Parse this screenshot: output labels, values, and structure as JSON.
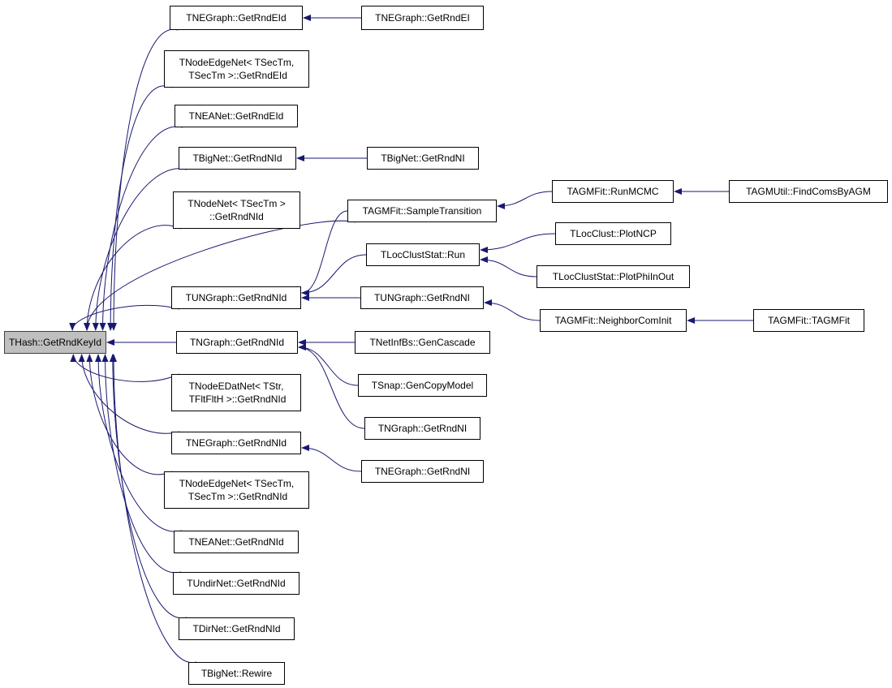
{
  "colors": {
    "edge": "#191970",
    "root_fill": "#bfbfbf",
    "node_fill": "#ffffff"
  },
  "nodes": [
    {
      "id": "root",
      "label": "THash::GetRndKeyId",
      "highlighted": true
    },
    {
      "id": "n1",
      "label": "TNEGraph::GetRndEId"
    },
    {
      "id": "n2",
      "label": "TNodeEdgeNet< TSecTm,\n TSecTm >::GetRndEId"
    },
    {
      "id": "n3",
      "label": "TNEANet::GetRndEId"
    },
    {
      "id": "n4",
      "label": "TBigNet::GetRndNId"
    },
    {
      "id": "n5",
      "label": "TNodeNet< TSecTm >\n::GetRndNId"
    },
    {
      "id": "n6",
      "label": "TUNGraph::GetRndNId"
    },
    {
      "id": "n7",
      "label": "TNGraph::GetRndNId"
    },
    {
      "id": "n8",
      "label": "TNodeEDatNet< TStr,\n TFltFltH >::GetRndNId"
    },
    {
      "id": "n9",
      "label": "TNEGraph::GetRndNId"
    },
    {
      "id": "n10",
      "label": "TNodeEdgeNet< TSecTm,\n TSecTm >::GetRndNId"
    },
    {
      "id": "n11",
      "label": "TNEANet::GetRndNId"
    },
    {
      "id": "n12",
      "label": "TUndirNet::GetRndNId"
    },
    {
      "id": "n13",
      "label": "TDirNet::GetRndNId"
    },
    {
      "id": "n14",
      "label": "TBigNet::Rewire"
    },
    {
      "id": "m1",
      "label": "TNEGraph::GetRndEI"
    },
    {
      "id": "m2",
      "label": "TBigNet::GetRndNI"
    },
    {
      "id": "m3",
      "label": "TAGMFit::SampleTransition"
    },
    {
      "id": "m4",
      "label": "TLocClustStat::Run"
    },
    {
      "id": "m5",
      "label": "TUNGraph::GetRndNI"
    },
    {
      "id": "m6",
      "label": "TNetInfBs::GenCascade"
    },
    {
      "id": "m7",
      "label": "TSnap::GenCopyModel"
    },
    {
      "id": "m8",
      "label": "TNGraph::GetRndNI"
    },
    {
      "id": "m9",
      "label": "TNEGraph::GetRndNI"
    },
    {
      "id": "k1",
      "label": "TAGMFit::RunMCMC"
    },
    {
      "id": "k2",
      "label": "TLocClust::PlotNCP"
    },
    {
      "id": "k3",
      "label": "TLocClustStat::PlotPhiInOut"
    },
    {
      "id": "k4",
      "label": "TAGMFit::NeighborComInit"
    },
    {
      "id": "j1",
      "label": "TAGMUtil::FindComsByAGM"
    },
    {
      "id": "j2",
      "label": "TAGMFit::TAGMFit"
    }
  ],
  "edges": [
    [
      "n1",
      "root"
    ],
    [
      "n2",
      "root"
    ],
    [
      "n3",
      "root"
    ],
    [
      "n4",
      "root"
    ],
    [
      "n5",
      "root"
    ],
    [
      "m3",
      "root"
    ],
    [
      "n6",
      "root"
    ],
    [
      "n7",
      "root"
    ],
    [
      "n8",
      "root"
    ],
    [
      "n9",
      "root"
    ],
    [
      "n10",
      "root"
    ],
    [
      "n11",
      "root"
    ],
    [
      "n12",
      "root"
    ],
    [
      "n13",
      "root"
    ],
    [
      "n14",
      "root"
    ],
    [
      "m1",
      "n1"
    ],
    [
      "m2",
      "n4"
    ],
    [
      "m3",
      "n6"
    ],
    [
      "m4",
      "n6"
    ],
    [
      "m5",
      "n6"
    ],
    [
      "m6",
      "n7"
    ],
    [
      "m7",
      "n7"
    ],
    [
      "m8",
      "n7"
    ],
    [
      "m9",
      "n9"
    ],
    [
      "k1",
      "m3"
    ],
    [
      "k2",
      "m4"
    ],
    [
      "k3",
      "m4"
    ],
    [
      "k4",
      "m5"
    ],
    [
      "j1",
      "k1"
    ],
    [
      "j2",
      "k4"
    ]
  ]
}
